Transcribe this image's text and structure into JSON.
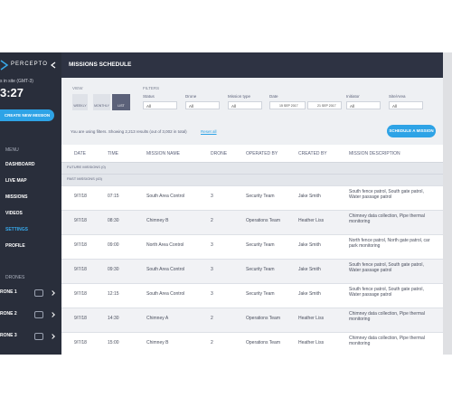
{
  "sidebar": {
    "logo": "PERCEPTO",
    "timezone": "s in site (GMT-3)",
    "time": "3:27",
    "create_button": "CREATE NEW MISSION",
    "menu_title": "MENU",
    "menu": [
      "DASHBOARD",
      "LIVE MAP",
      "MISSIONS",
      "VIDEOS",
      "SETTINGS",
      "PROFILE"
    ],
    "active_index": 4,
    "drones_title": "DRONES",
    "drones": [
      "RONE 1",
      "RONE 2",
      "RONE 3"
    ]
  },
  "header": {
    "title": "MISSIONS SCHEDULE"
  },
  "view": {
    "label": "VIEW",
    "options": [
      "WEEKLY",
      "MONTHLY",
      "LIST"
    ],
    "selected": 2
  },
  "filters": {
    "label": "FILTERS",
    "fields": [
      {
        "label": "Status",
        "value": "All"
      },
      {
        "label": "Drone",
        "value": "All"
      },
      {
        "label": "Mission type",
        "value": "All"
      },
      {
        "label": "Date",
        "from": "15 SEP 2017",
        "to": "21 SEP 2017"
      },
      {
        "label": "Initiator",
        "value": "All"
      },
      {
        "label": "Site/Area",
        "value": "All"
      }
    ]
  },
  "results": {
    "text": "You are using filters. Showing 2,213 results (out of 3,002 in total)",
    "reset": "Reset all"
  },
  "schedule_button": "SCHEDULE A MISSION",
  "table": {
    "columns": [
      "DATE",
      "TIME",
      "MISSION NAME",
      "DRONE",
      "OPERATED BY",
      "CREATED BY",
      "MISSION DESCRIPTION"
    ],
    "groups": [
      "FUTURE MISSIONS (0)",
      "PAST MISSIONS (43)"
    ],
    "rows": [
      [
        "9/7/18",
        "07:15",
        "South Area Control",
        "3",
        "Security Team",
        "Jake Smith",
        "South fence patrol, South gate patrol, Water passage patrol"
      ],
      [
        "9/7/18",
        "08:30",
        "Chimney B",
        "2",
        "Operations Team",
        "Heather Liss",
        "Chimney data collection, Pipe thermal monitoring"
      ],
      [
        "9/7/18",
        "09:00",
        "North Area Control",
        "3",
        "Security Team",
        "Jake Smith",
        "North fence patrol, North gate patrol, car park monitoring"
      ],
      [
        "9/7/18",
        "09:30",
        "South Area Control",
        "3",
        "Security Team",
        "Jake Smith",
        "South fence patrol, South gate patrol, Water passage patrol"
      ],
      [
        "9/7/18",
        "12:15",
        "South Area Control",
        "3",
        "Security Team",
        "Jake Smith",
        "South fence patrol, South gate patrol, Water passage patrol"
      ],
      [
        "9/7/18",
        "14:30",
        "Chimney A",
        "2",
        "Operations Team",
        "Heather Liss",
        "Chimney data collection, Pipe thermal monitoring"
      ],
      [
        "9/7/18",
        "15:00",
        "Chimney B",
        "2",
        "Operations Team",
        "Heather Liss",
        "Chimney data collection, Pipe thermal monitoring"
      ]
    ]
  }
}
